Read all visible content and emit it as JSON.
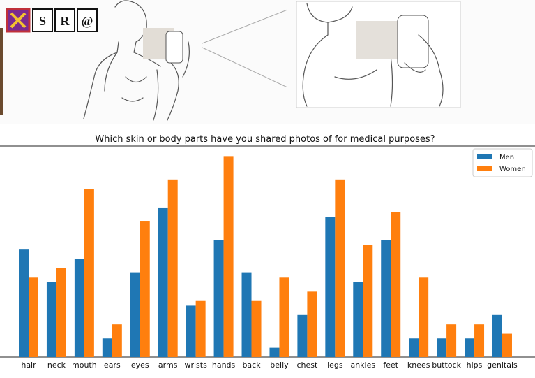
{
  "logo": {
    "letters": [
      "S",
      "R",
      "@"
    ]
  },
  "chart_data": {
    "type": "bar",
    "title": "Which skin or body parts have you shared photos of for medical purposes?",
    "categories": [
      "hair",
      "neck",
      "mouth",
      "ears",
      "eyes",
      "arms",
      "wrists",
      "hands",
      "back",
      "belly",
      "chest",
      "legs",
      "ankles",
      "feet",
      "knees",
      "buttock",
      "hips",
      "genitals"
    ],
    "series": [
      {
        "name": "Men",
        "color": "#1f77b4",
        "values": [
          23,
          16,
          21,
          4,
          18,
          32,
          11,
          25,
          18,
          2,
          9,
          30,
          16,
          25,
          4,
          4,
          4,
          9
        ]
      },
      {
        "name": "Women",
        "color": "#ff7f0e",
        "values": [
          17,
          19,
          36,
          7,
          29,
          38,
          12,
          43,
          12,
          17,
          14,
          38,
          24,
          31,
          17,
          7,
          7,
          5
        ]
      }
    ],
    "ylim": [
      0,
      45
    ],
    "legend": "upper right"
  }
}
